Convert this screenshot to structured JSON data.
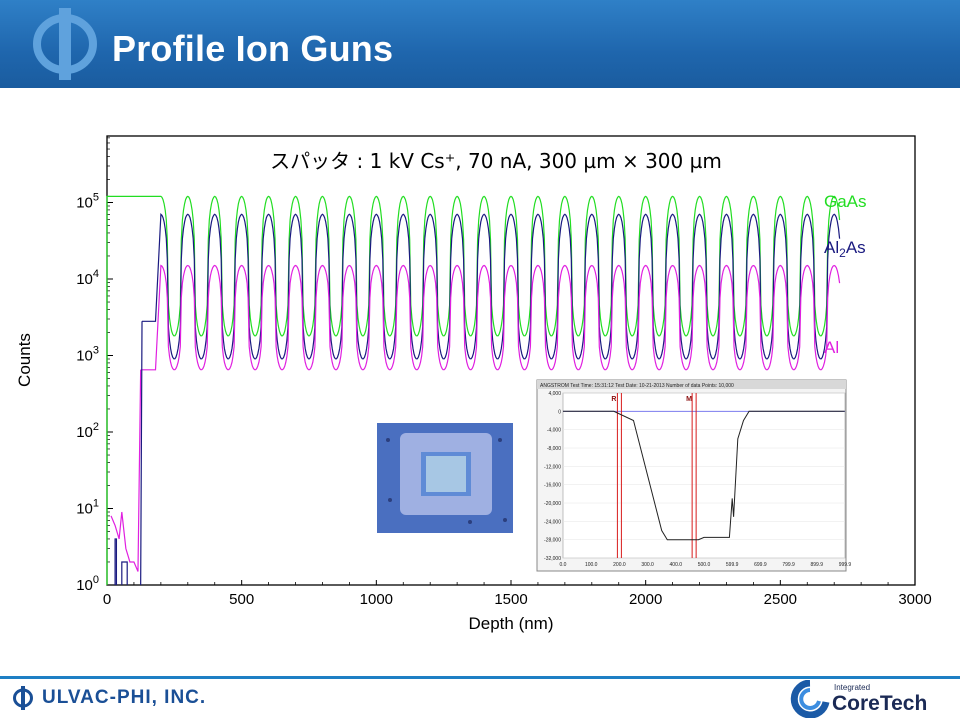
{
  "slide": {
    "title": "Profile Ion Guns",
    "footer_brand": "ULVAC-PHI, INC.",
    "footer_partner_small": "Integrated",
    "footer_partner": "CoreTech"
  },
  "colors": {
    "header_blue": "#1f66ad",
    "footer_rule": "#1e7fc4",
    "GaAs": "#22dd22",
    "Al2As": "#1a1a80",
    "Al": "#e020e0",
    "inset_red": "#d81b1b",
    "inset_blue": "#7d7dee"
  },
  "icons": {
    "header_logo": "phi-logo-icon",
    "footer_logo": "phi-small-logo-icon",
    "coretech_logo": "coretech-swirl-icon"
  },
  "chart_data": [
    {
      "type": "line",
      "title": "スパッタ : 1 kV Cs⁺, 70 nA, 300 µm × 300 µm",
      "xlabel": "Depth (nm)",
      "ylabel": "Counts",
      "xlim": [
        0,
        3000
      ],
      "ylim_log10": [
        0,
        5.7
      ],
      "y_scale": "log",
      "x_ticks": [
        0,
        500,
        1000,
        1500,
        2000,
        2500,
        3000
      ],
      "y_ticks": [
        "10^0",
        "10^1",
        "10^2",
        "10^3",
        "10^4",
        "10^5"
      ],
      "legend_position": "right, at line ends",
      "series": [
        {
          "name": "GaAs",
          "name_base": "GaAs",
          "name_sub": "",
          "name_tail": "",
          "color": "#22dd22",
          "initial_plateau": 120000,
          "initial_end_x": 140,
          "rise_end_x": 200,
          "oscillation": {
            "x_start": 200,
            "x_end": 2720,
            "period_nm": 100,
            "peak": 120000,
            "trough": 1800
          }
        },
        {
          "name": "Al2As",
          "name_base": "Al",
          "name_sub": "2",
          "name_tail": "As",
          "color": "#1a1a80",
          "initial_plateau": 2800,
          "initial_start_x": 130,
          "initial_end_x": 180,
          "rise_end_x": 200,
          "oscillation": {
            "x_start": 200,
            "x_end": 2720,
            "period_nm": 100,
            "peak": 70000,
            "trough": 900
          }
        },
        {
          "name": "Al",
          "name_base": "Al",
          "name_sub": "",
          "name_tail": "",
          "color": "#e020e0",
          "initial_plateau": 650,
          "initial_start_x": 125,
          "initial_end_x": 180,
          "rise_end_x": 200,
          "oscillation": {
            "x_start": 200,
            "x_end": 2720,
            "period_nm": 100,
            "peak": 15000,
            "trough": 650
          }
        }
      ]
    },
    {
      "type": "line",
      "title": "",
      "xlabel": "",
      "ylabel": "",
      "header_text": "ANGSTROM    Test Time: 15:31:12  Test Date: 10-21-2013  Number of data Points: 10,000",
      "y_ticks": [
        "4,000",
        "0",
        "-4,000",
        "-8,000",
        "-12,000",
        "-16,000",
        "-20,000",
        "-24,000",
        "-28,000",
        "-32,000"
      ],
      "x_ticks": [
        "0.0",
        "100.0",
        "200.0",
        "300.0",
        "400.0",
        "500.0",
        "599.9",
        "699.9",
        "799.9",
        "899.9",
        "999.9"
      ],
      "xlim": [
        0,
        1000
      ],
      "ylim": [
        -32000,
        4000
      ],
      "markers": [
        {
          "label": "R",
          "x": 200
        },
        {
          "label": "M",
          "x": 465
        }
      ],
      "series": [
        {
          "name": "",
          "color": "#222222",
          "points": [
            [
              0,
              0
            ],
            [
              180,
              0
            ],
            [
              250,
              -2000
            ],
            [
              300,
              -14000
            ],
            [
              350,
              -26000
            ],
            [
              370,
              -28000
            ],
            [
              480,
              -28000
            ],
            [
              500,
              -27500
            ],
            [
              590,
              -27500
            ],
            [
              600,
              -19000
            ],
            [
              605,
              -23000
            ],
            [
              620,
              -6000
            ],
            [
              640,
              -2000
            ],
            [
              660,
              0
            ],
            [
              999,
              0
            ]
          ]
        }
      ]
    }
  ],
  "inset_photo": {
    "description_icon": "sputter-crater-micrograph"
  }
}
